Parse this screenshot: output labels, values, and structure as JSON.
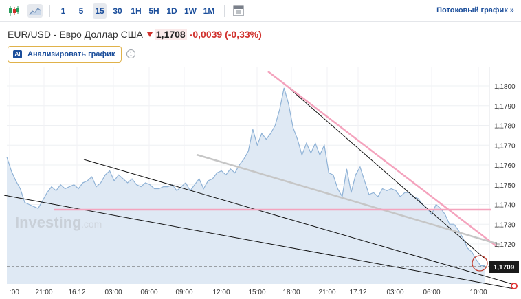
{
  "toolbar": {
    "intervals": [
      "1",
      "5",
      "15",
      "30",
      "1H",
      "5H",
      "1D",
      "1W",
      "1M"
    ],
    "active_interval": "15",
    "stream_link": "Потоковый график »",
    "icons": [
      "candlestick-icon",
      "area-chart-icon",
      "calendar-icon"
    ]
  },
  "instrument": {
    "pair": "EUR/USD - Евро Доллар США",
    "price": "1,1708",
    "change": "-0,0039 (-0,33%)",
    "direction": "down",
    "down_color": "#d0312d"
  },
  "analyze_button": {
    "badge": "AI",
    "label": "Анализировать график"
  },
  "watermark": {
    "brand": "Investing",
    "suffix": ".com"
  },
  "current_price_label": "1,1709",
  "chart_data": {
    "type": "area",
    "y_ticks": [
      "1,1800",
      "1,1790",
      "1,1780",
      "1,1770",
      "1,1760",
      "1,1750",
      "1,1740",
      "1,1730",
      "1,1720"
    ],
    "ylim": [
      1.1705,
      1.181
    ],
    "x_ticks": [
      ":00",
      "21:00",
      "16.12",
      "03:00",
      "06:00",
      "09:00",
      "12:00",
      "15:00",
      "18:00",
      "21:00",
      "17.12",
      "03:00",
      "06:00",
      "10:00"
    ],
    "area_color": "#dbe6f2",
    "line_color": "#8fb2d6",
    "grid": true,
    "series": [
      {
        "values": [
          1.1764,
          1.1757,
          1.1752,
          1.1748,
          1.1741,
          1.174,
          1.1739,
          1.1738,
          1.1742,
          1.1746,
          1.1749,
          1.1747,
          1.175,
          1.1748,
          1.1749,
          1.175,
          1.1748,
          1.1751,
          1.1752,
          1.1754,
          1.1749,
          1.1751,
          1.1755,
          1.1757,
          1.1752,
          1.1755,
          1.1753,
          1.1751,
          1.1753,
          1.175,
          1.1749,
          1.1751,
          1.175,
          1.1748,
          1.1748,
          1.1749,
          1.1749,
          1.175,
          1.1747,
          1.1749,
          1.1751,
          1.1747,
          1.175,
          1.1753,
          1.1748,
          1.1752,
          1.1753,
          1.1756,
          1.1757,
          1.1755,
          1.1758,
          1.1756,
          1.176,
          1.1763,
          1.1767,
          1.1778,
          1.177,
          1.1776,
          1.1773,
          1.1776,
          1.178,
          1.1788,
          1.1799,
          1.1791,
          1.1779,
          1.1773,
          1.1765,
          1.1771,
          1.1766,
          1.1771,
          1.1765,
          1.177,
          1.1756,
          1.1755,
          1.1748,
          1.1744,
          1.1758,
          1.1746,
          1.1755,
          1.1759,
          1.1752,
          1.1745,
          1.1746,
          1.1744,
          1.1748,
          1.1747,
          1.1748,
          1.1747,
          1.1744,
          1.1746,
          1.1746,
          1.1744,
          1.1743,
          1.174,
          1.1738,
          1.1735,
          1.174,
          1.1738,
          1.1735,
          1.173,
          1.173,
          1.1727,
          1.1723,
          1.1718,
          1.1716,
          1.1712,
          1.1709,
          1.1709
        ]
      }
    ]
  }
}
